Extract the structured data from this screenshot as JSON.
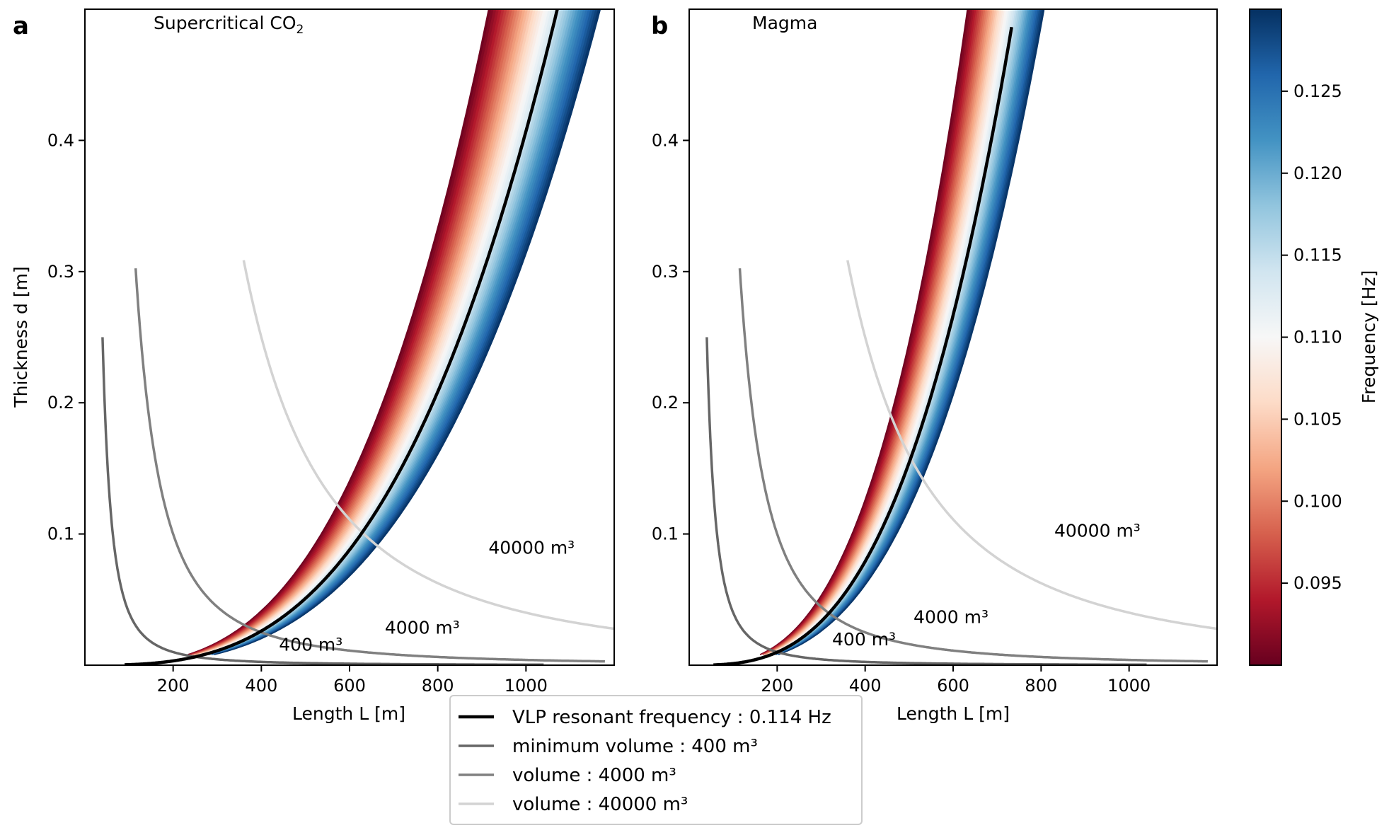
{
  "figure": {
    "colorbar": {
      "label": "Frequency [Hz]",
      "range": [
        0.09,
        0.13
      ],
      "ticks": [
        "0.095",
        "0.100",
        "0.105",
        "0.110",
        "0.115",
        "0.120",
        "0.125"
      ],
      "colormap": [
        "#67001f",
        "#b2182b",
        "#d6604d",
        "#f4a582",
        "#fddbc7",
        "#f7f7f7",
        "#d1e5f0",
        "#92c5de",
        "#4393c3",
        "#2166ac",
        "#053061"
      ]
    },
    "legend": {
      "placement": "bottom-center",
      "items": [
        {
          "text": "VLP resonant frequency : 0.114 Hz",
          "color": "#000000"
        },
        {
          "text": "minimum volume : 400 m³",
          "color": "#666666"
        },
        {
          "text": "volume : 4000 m³",
          "color": "#808080"
        },
        {
          "text": "volume : 40000 m³",
          "color": "#d3d3d3"
        }
      ]
    }
  },
  "chart_data": [
    {
      "type": "heatmap",
      "panel_letter": "a",
      "title": "Supercritical CO",
      "title_subscript": "2",
      "xlabel": "Length L [m]",
      "ylabel": "Thickness d [m]",
      "xlim": [
        0,
        1200
      ],
      "ylim": [
        0,
        0.5
      ],
      "xticks": [
        "200",
        "400",
        "600",
        "800",
        "1000"
      ],
      "yticks": [
        "0.1",
        "0.2",
        "0.3",
        "0.4"
      ],
      "frequency_band": {
        "min_hz": 0.09,
        "max_hz": 0.13,
        "d_vs_L_coefficient": 3.6e-10,
        "exponent": 3
      },
      "resonance_curve": {
        "frequency_hz": 0.114,
        "L_start": 90,
        "L_end": 1075,
        "d_vs_L_coefficient": 4.07e-10
      },
      "volume_curves": [
        {
          "volume_m3": 400,
          "label": "400 m³",
          "L_start": 40,
          "L_end": 1040,
          "color": "#666666",
          "label_L": 440,
          "label_d": 0.011
        },
        {
          "volume_m3": 4000,
          "label": "4000 m³",
          "L_start": 115,
          "L_end": 1180,
          "color": "#808080",
          "label_L": 680,
          "label_d": 0.024
        },
        {
          "volume_m3": 40000,
          "label": "40000 m³",
          "L_start": 360,
          "L_end": 1200,
          "color": "#d3d3d3",
          "label_L": 915,
          "label_d": 0.085
        }
      ]
    },
    {
      "type": "heatmap",
      "panel_letter": "b",
      "title": "Magma",
      "title_subscript": "",
      "xlabel": "Length L [m]",
      "ylabel": "",
      "xlim": [
        0,
        1200
      ],
      "ylim": [
        0,
        0.5
      ],
      "xticks": [
        "200",
        "400",
        "600",
        "800",
        "1000"
      ],
      "yticks": [
        "0.1",
        "0.2",
        "0.3",
        "0.4"
      ],
      "frequency_band": {
        "min_hz": 0.09,
        "max_hz": 0.13,
        "d_vs_L_coefficient": 1.05e-09,
        "exponent": 3
      },
      "resonance_curve": {
        "frequency_hz": 0.114,
        "L_start": 55,
        "L_end": 735,
        "d_vs_L_coefficient": 1.235e-09
      },
      "volume_curves": [
        {
          "volume_m3": 400,
          "label": "400 m³",
          "L_start": 40,
          "L_end": 1040,
          "color": "#666666",
          "label_L": 325,
          "label_d": 0.015
        },
        {
          "volume_m3": 4000,
          "label": "4000 m³",
          "L_start": 115,
          "L_end": 1180,
          "color": "#808080",
          "label_L": 510,
          "label_d": 0.032
        },
        {
          "volume_m3": 40000,
          "label": "40000 m³",
          "L_start": 360,
          "L_end": 1200,
          "color": "#d3d3d3",
          "label_L": 830,
          "label_d": 0.098
        }
      ]
    }
  ]
}
